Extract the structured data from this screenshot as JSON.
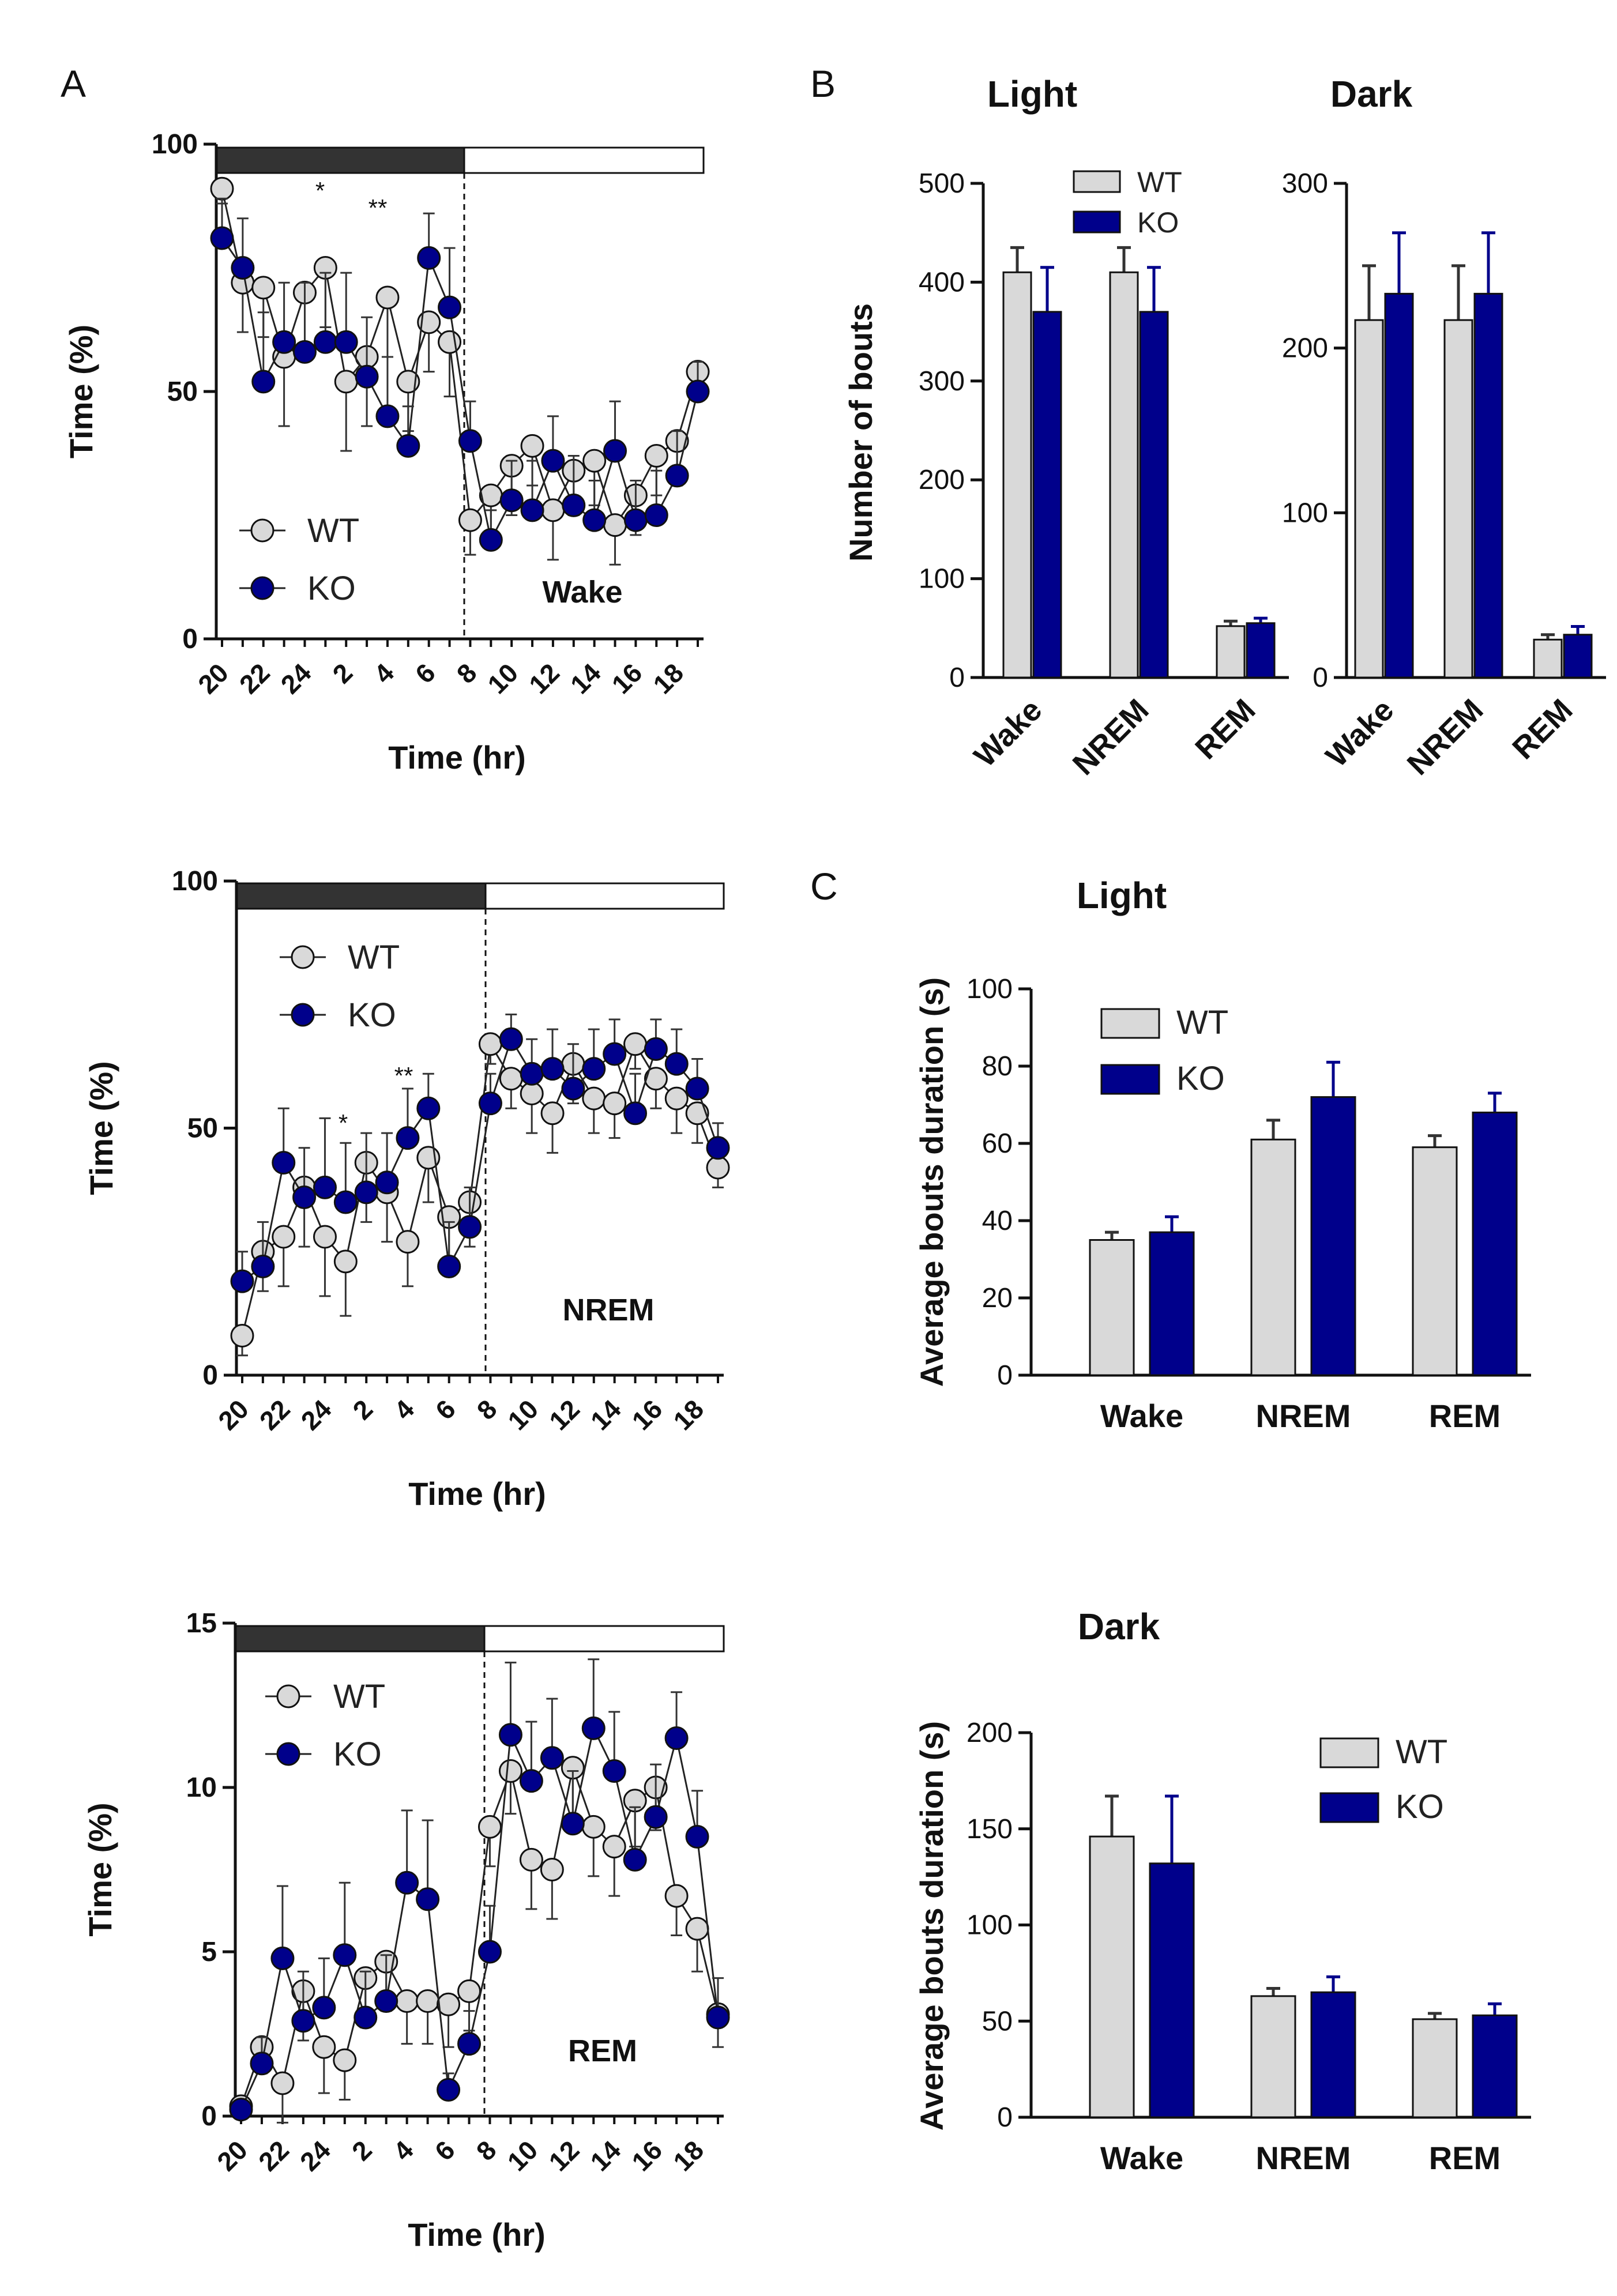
{
  "figure": {
    "panel_labels": [
      "A",
      "B",
      "C"
    ],
    "light_label": "Light",
    "dark_label": "Dark",
    "colors": {
      "wt_fill": "#d9d9d9",
      "ko_fill": "#00008b",
      "outline": "#111111",
      "night_bar": "#333333"
    }
  },
  "chart_data": [
    {
      "id": "A-wake",
      "panel": "A",
      "type": "line",
      "title": "",
      "annotation": "Wake",
      "xlabel": "Time (hr)",
      "ylabel": "Time (%)",
      "ylim": [
        0,
        100
      ],
      "yticks": [
        0,
        50,
        100
      ],
      "xticklabels": [
        "20",
        "22",
        "24",
        "2",
        "4",
        "6",
        "8",
        "10",
        "12",
        "14",
        "16",
        "18"
      ],
      "light_dark_bar": {
        "dark_from_hour": 20,
        "dark_to_hour": 8
      },
      "dashed_line_at": "8",
      "significance": [
        "*",
        "**"
      ],
      "legend": [
        "WT",
        "KO"
      ],
      "series": [
        {
          "name": "WT",
          "values": [
            91,
            72,
            71,
            57,
            70,
            75,
            52,
            57,
            69,
            52,
            64,
            60,
            24,
            29,
            35,
            39,
            26,
            34,
            36,
            23,
            29,
            37,
            40,
            54
          ],
          "errors": [
            3,
            10,
            10,
            14,
            12,
            12,
            14,
            14,
            12,
            10,
            10,
            11,
            7,
            10,
            10,
            8,
            10,
            9,
            9,
            8,
            8,
            8,
            9,
            5
          ]
        },
        {
          "name": "KO",
          "values": [
            81,
            75,
            52,
            60,
            58,
            60,
            60,
            53,
            45,
            39,
            77,
            67,
            40,
            20,
            28,
            26,
            36,
            27,
            24,
            38,
            24,
            25,
            33,
            50
          ],
          "errors": [
            8,
            10,
            14,
            12,
            14,
            14,
            14,
            12,
            12,
            8,
            9,
            12,
            8,
            6,
            8,
            10,
            9,
            10,
            8,
            10,
            8,
            9,
            9,
            6
          ]
        }
      ]
    },
    {
      "id": "A-nrem",
      "panel": "A",
      "type": "line",
      "title": "",
      "annotation": "NREM",
      "xlabel": "Time (hr)",
      "ylabel": "Time (%)",
      "ylim": [
        0,
        100
      ],
      "yticks": [
        0,
        50,
        100
      ],
      "xticklabels": [
        "20",
        "22",
        "24",
        "2",
        "4",
        "6",
        "8",
        "10",
        "12",
        "14",
        "16",
        "18"
      ],
      "light_dark_bar": {
        "dark_from_hour": 20,
        "dark_to_hour": 8
      },
      "dashed_line_at": "8",
      "significance": [
        "*",
        "**"
      ],
      "legend": [
        "WT",
        "KO"
      ],
      "series": [
        {
          "name": "WT",
          "values": [
            8,
            25,
            28,
            38,
            28,
            23,
            43,
            37,
            27,
            44,
            32,
            35,
            67,
            60,
            57,
            53,
            63,
            56,
            55,
            67,
            60,
            56,
            53,
            42
          ],
          "errors": [
            4,
            8,
            10,
            12,
            12,
            11,
            12,
            10,
            9,
            9,
            10,
            9,
            4,
            6,
            8,
            8,
            8,
            7,
            7,
            5,
            6,
            7,
            6,
            4
          ]
        },
        {
          "name": "KO",
          "values": [
            19,
            22,
            43,
            36,
            38,
            35,
            37,
            39,
            48,
            54,
            22,
            30,
            55,
            68,
            61,
            62,
            58,
            62,
            65,
            53,
            66,
            63,
            58,
            46
          ],
          "errors": [
            6,
            9,
            11,
            10,
            14,
            12,
            12,
            10,
            10,
            7,
            9,
            8,
            6,
            5,
            7,
            8,
            9,
            8,
            7,
            8,
            6,
            7,
            6,
            5
          ]
        }
      ]
    },
    {
      "id": "A-rem",
      "panel": "A",
      "type": "line",
      "title": "",
      "annotation": "REM",
      "xlabel": "Time (hr)",
      "ylabel": "Time (%)",
      "ylim": [
        0,
        15
      ],
      "yticks": [
        0,
        5,
        10,
        15
      ],
      "xticklabels": [
        "20",
        "22",
        "24",
        "2",
        "4",
        "6",
        "8",
        "10",
        "12",
        "14",
        "16",
        "18"
      ],
      "light_dark_bar": {
        "dark_from_hour": 20,
        "dark_to_hour": 8
      },
      "dashed_line_at": "8",
      "legend": [
        "WT",
        "KO"
      ],
      "series": [
        {
          "name": "WT",
          "values": [
            0.3,
            2.1,
            1.0,
            3.8,
            2.1,
            1.7,
            4.2,
            4.7,
            3.5,
            3.5,
            3.4,
            3.8,
            8.8,
            10.5,
            7.8,
            7.5,
            10.6,
            8.8,
            8.2,
            9.6,
            10.0,
            6.7,
            5.7,
            3.1
          ],
          "errors": [
            0.2,
            0.8,
            1.2,
            1.5,
            1.4,
            1.2,
            1.5,
            1.5,
            1.3,
            1.3,
            1.3,
            1.2,
            1.2,
            1.3,
            1.5,
            1.5,
            1.6,
            1.5,
            1.5,
            1.4,
            1.3,
            1.2,
            1.3,
            1.0
          ]
        },
        {
          "name": "KO",
          "values": [
            0.2,
            1.6,
            4.8,
            2.9,
            3.3,
            4.9,
            3.0,
            3.5,
            7.1,
            6.6,
            0.8,
            2.2,
            5.0,
            11.6,
            10.2,
            10.9,
            8.9,
            11.8,
            10.5,
            7.8,
            9.1,
            11.5,
            8.5,
            3.0
          ],
          "errors": [
            0.2,
            0.8,
            2.2,
            1.5,
            1.5,
            2.2,
            1.4,
            1.4,
            2.2,
            2.4,
            0.5,
            1.0,
            1.4,
            2.2,
            1.8,
            1.8,
            1.6,
            2.1,
            1.8,
            1.6,
            1.6,
            1.4,
            1.4,
            1.2
          ]
        }
      ]
    },
    {
      "id": "B-light",
      "panel": "B",
      "type": "bar",
      "title": "Light",
      "xlabel": "",
      "ylabel": "Number of bouts",
      "ylim": [
        0,
        500
      ],
      "yticks": [
        0,
        100,
        200,
        300,
        400,
        500
      ],
      "categories": [
        "Wake",
        "NREM",
        "REM"
      ],
      "legend": [
        "WT",
        "KO"
      ],
      "legend_position": "top-right",
      "series": [
        {
          "name": "WT",
          "values": [
            410,
            410,
            52
          ],
          "errors": [
            25,
            25,
            5
          ]
        },
        {
          "name": "KO",
          "values": [
            370,
            370,
            55
          ],
          "errors": [
            45,
            45,
            5
          ]
        }
      ]
    },
    {
      "id": "B-dark",
      "panel": "B",
      "type": "bar",
      "title": "Dark",
      "xlabel": "",
      "ylabel": "",
      "ylim": [
        0,
        300
      ],
      "yticks": [
        0,
        100,
        200,
        300
      ],
      "categories": [
        "Wake",
        "NREM",
        "REM"
      ],
      "series": [
        {
          "name": "WT",
          "values": [
            217,
            217,
            23
          ],
          "errors": [
            33,
            33,
            3
          ]
        },
        {
          "name": "KO",
          "values": [
            233,
            233,
            26
          ],
          "errors": [
            37,
            37,
            5
          ]
        }
      ]
    },
    {
      "id": "C-light",
      "panel": "C",
      "type": "bar",
      "title": "Light",
      "xlabel": "",
      "ylabel": "Average bouts duration (s)",
      "ylim": [
        0,
        100
      ],
      "yticks": [
        0,
        20,
        40,
        60,
        80,
        100
      ],
      "categories": [
        "Wake",
        "NREM",
        "REM"
      ],
      "legend": [
        "WT",
        "KO"
      ],
      "legend_position": "top-left",
      "series": [
        {
          "name": "WT",
          "values": [
            35,
            61,
            59
          ],
          "errors": [
            2,
            5,
            3
          ]
        },
        {
          "name": "KO",
          "values": [
            37,
            72,
            68
          ],
          "errors": [
            4,
            9,
            5
          ]
        }
      ]
    },
    {
      "id": "C-dark",
      "panel": "C",
      "type": "bar",
      "title": "Dark",
      "xlabel": "",
      "ylabel": "Average bouts duration (s)",
      "ylim": [
        0,
        200
      ],
      "yticks": [
        0,
        50,
        100,
        150,
        200
      ],
      "categories": [
        "Wake",
        "NREM",
        "REM"
      ],
      "legend": [
        "WT",
        "KO"
      ],
      "legend_position": "top-right",
      "series": [
        {
          "name": "WT",
          "values": [
            146,
            63,
            51
          ],
          "errors": [
            21,
            4,
            3
          ]
        },
        {
          "name": "KO",
          "values": [
            132,
            65,
            53
          ],
          "errors": [
            35,
            8,
            6
          ]
        }
      ]
    }
  ]
}
